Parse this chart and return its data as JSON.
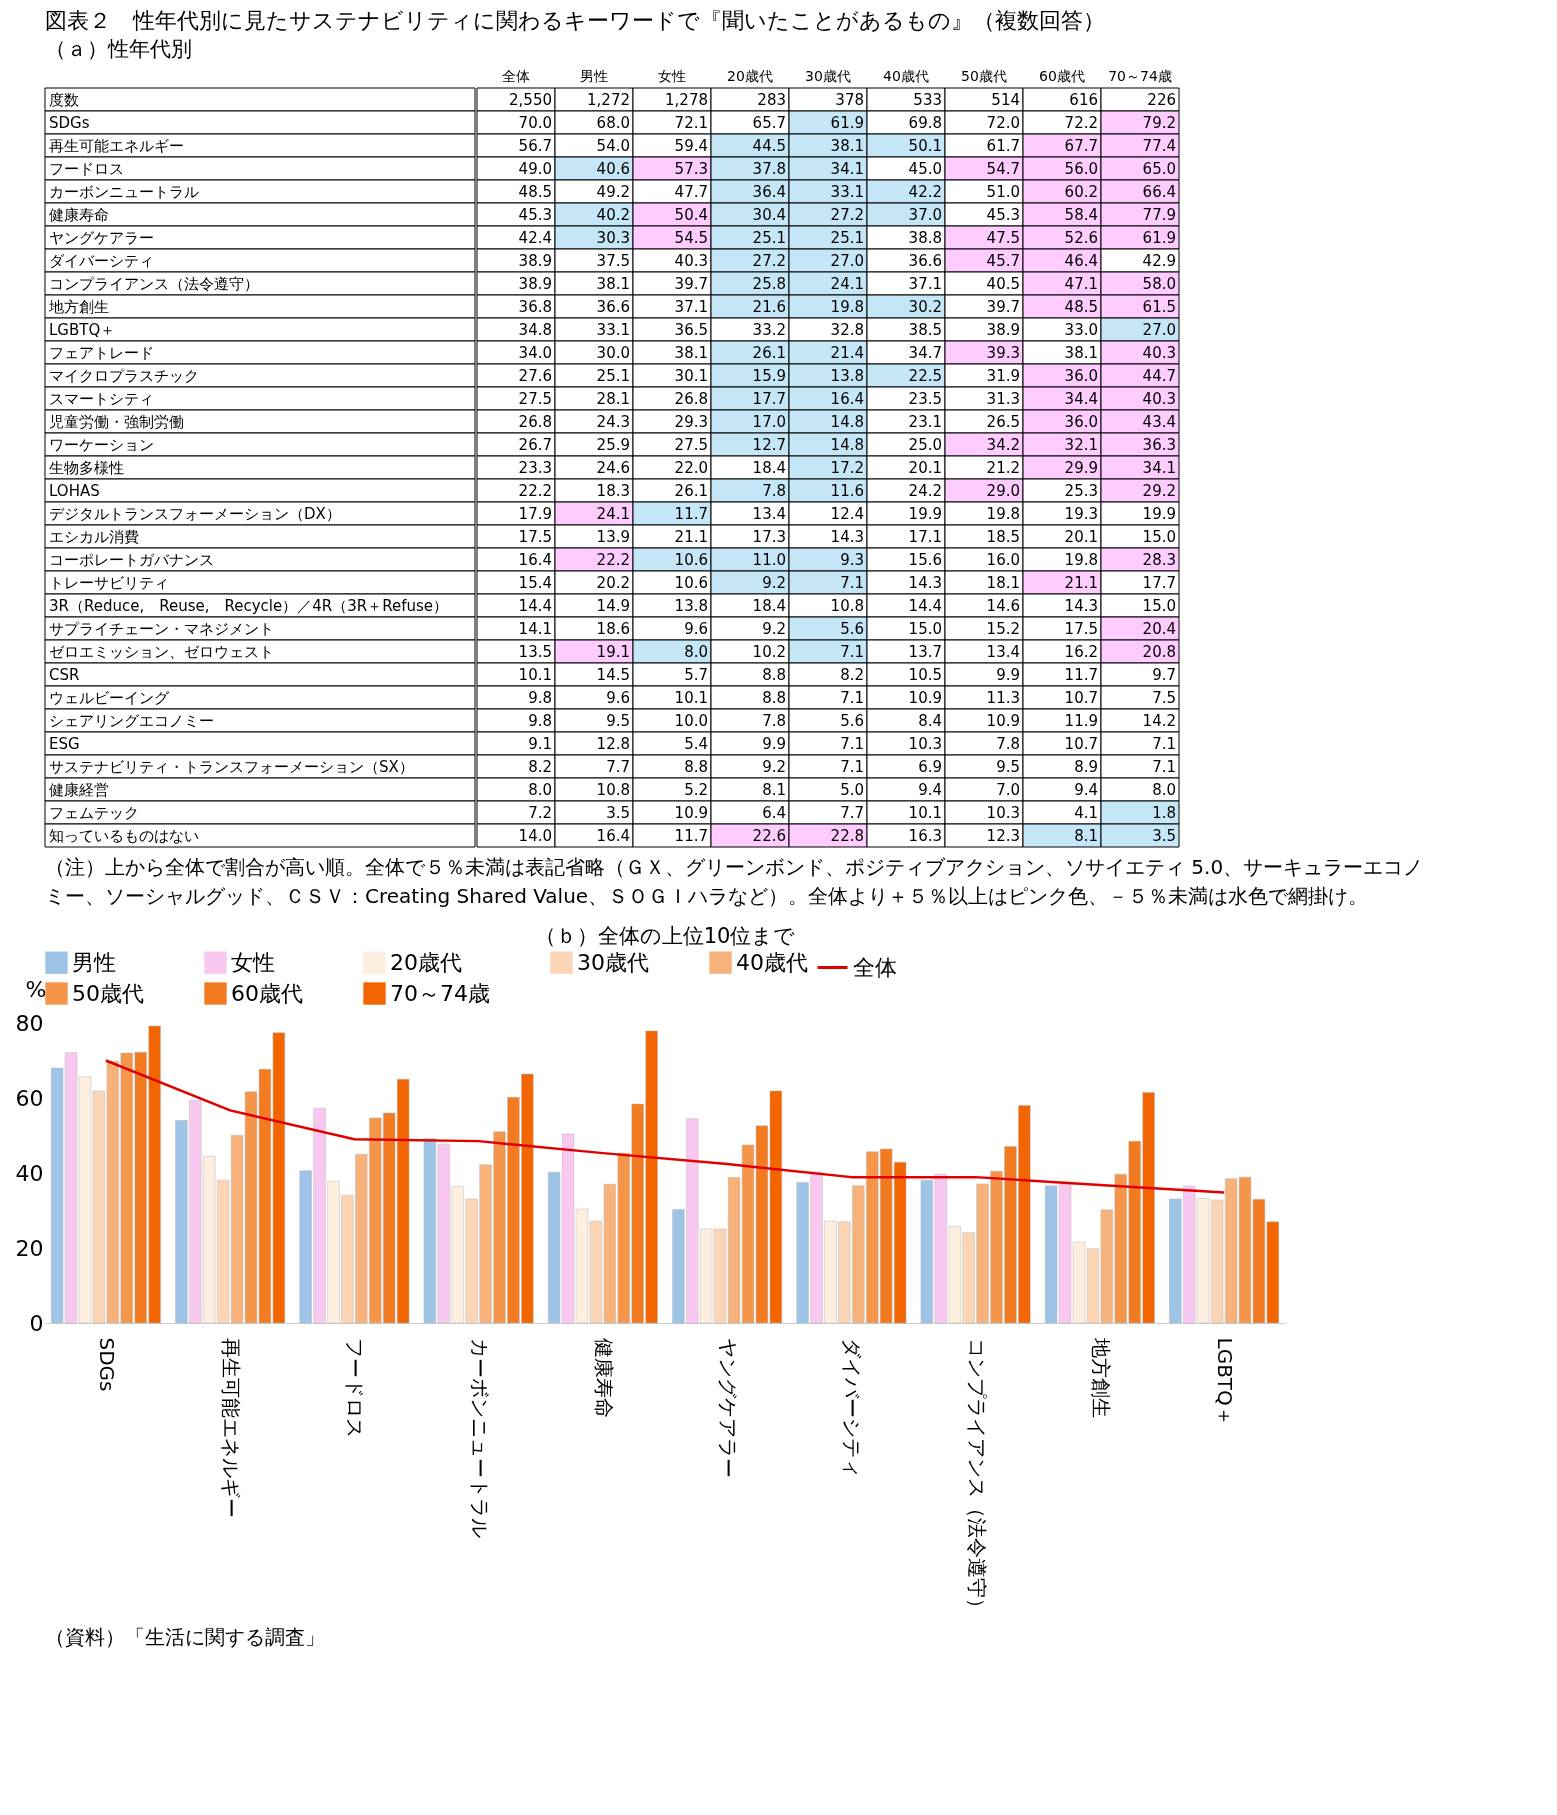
{
  "chart_data": [
    {
      "type": "heatmap",
      "title": "図表２　性年代別に見たサステナビリティに関わるキーワードで『聞いたことがあるもの』（複数回答）",
      "subtitle": "（ａ）性年代別",
      "data_labels": true,
      "categories": [
        "全体",
        "男性",
        "女性",
        "20歳代",
        "30歳代",
        "40歳代",
        "50歳代",
        "60歳代",
        "70～74歳"
      ],
      "y_categories": [
        "度数",
        "SDGs",
        "再生可能エネルギー",
        "フードロス",
        "カーボンニュートラル",
        "健康寿命",
        "ヤングケアラー",
        "ダイバーシティ",
        "コンプライアンス（法令遵守）",
        "地方創生",
        "LGBTQ＋",
        "フェアトレード",
        "マイクロプラスチック",
        "スマートシティ",
        "児童労働・強制労働",
        "ワーケーション",
        "生物多様性",
        "LOHAS",
        "デジタルトランスフォーメーション（DX）",
        "エシカル消費",
        "コーポレートガバナンス",
        "トレーサビリティ",
        "3R（Reduce,　Reuse,　Recycle）／4R（3R＋Refuse）",
        "サプライチェーン・マネジメント",
        "ゼロエミッション、ゼロウェスト",
        "CSR",
        "ウェルビーイング",
        "シェアリングエコノミー",
        "ESG",
        "サステナビリティ・トランスフォーメーション（SX）",
        "健康経営",
        "フェムテック",
        "知っているものはない"
      ],
      "cells": [
        [
          2550,
          1272,
          1278,
          283,
          378,
          533,
          514,
          616,
          226
        ],
        [
          70.0,
          68.0,
          72.1,
          65.7,
          61.9,
          69.8,
          72.0,
          72.2,
          79.2
        ],
        [
          56.7,
          54.0,
          59.4,
          44.5,
          38.1,
          50.1,
          61.7,
          67.7,
          77.4
        ],
        [
          49.0,
          40.6,
          57.3,
          37.8,
          34.1,
          45.0,
          54.7,
          56.0,
          65.0
        ],
        [
          48.5,
          49.2,
          47.7,
          36.4,
          33.1,
          42.2,
          51.0,
          60.2,
          66.4
        ],
        [
          45.3,
          40.2,
          50.4,
          30.4,
          27.2,
          37.0,
          45.3,
          58.4,
          77.9
        ],
        [
          42.4,
          30.3,
          54.5,
          25.1,
          25.1,
          38.8,
          47.5,
          52.6,
          61.9
        ],
        [
          38.9,
          37.5,
          40.3,
          27.2,
          27.0,
          36.6,
          45.7,
          46.4,
          42.9
        ],
        [
          38.9,
          38.1,
          39.7,
          25.8,
          24.1,
          37.1,
          40.5,
          47.1,
          58.0
        ],
        [
          36.8,
          36.6,
          37.1,
          21.6,
          19.8,
          30.2,
          39.7,
          48.5,
          61.5
        ],
        [
          34.8,
          33.1,
          36.5,
          33.2,
          32.8,
          38.5,
          38.9,
          33.0,
          27.0
        ],
        [
          34.0,
          30.0,
          38.1,
          26.1,
          21.4,
          34.7,
          39.3,
          38.1,
          40.3
        ],
        [
          27.6,
          25.1,
          30.1,
          15.9,
          13.8,
          22.5,
          31.9,
          36.0,
          44.7
        ],
        [
          27.5,
          28.1,
          26.8,
          17.7,
          16.4,
          23.5,
          31.3,
          34.4,
          40.3
        ],
        [
          26.8,
          24.3,
          29.3,
          17.0,
          14.8,
          23.1,
          26.5,
          36.0,
          43.4
        ],
        [
          26.7,
          25.9,
          27.5,
          12.7,
          14.8,
          25.0,
          34.2,
          32.1,
          36.3
        ],
        [
          23.3,
          24.6,
          22.0,
          18.4,
          17.2,
          20.1,
          21.2,
          29.9,
          34.1
        ],
        [
          22.2,
          18.3,
          26.1,
          7.8,
          11.6,
          24.2,
          29.0,
          25.3,
          29.2
        ],
        [
          17.9,
          24.1,
          11.7,
          13.4,
          12.4,
          19.9,
          19.8,
          19.3,
          19.9
        ],
        [
          17.5,
          13.9,
          21.1,
          17.3,
          14.3,
          17.1,
          18.5,
          20.1,
          15.0
        ],
        [
          16.4,
          22.2,
          10.6,
          11.0,
          9.3,
          15.6,
          16.0,
          19.8,
          28.3
        ],
        [
          15.4,
          20.2,
          10.6,
          9.2,
          7.1,
          14.3,
          18.1,
          21.1,
          17.7
        ],
        [
          14.4,
          14.9,
          13.8,
          18.4,
          10.8,
          14.4,
          14.6,
          14.3,
          15.0
        ],
        [
          14.1,
          18.6,
          9.6,
          9.2,
          5.6,
          15.0,
          15.2,
          17.5,
          20.4
        ],
        [
          13.5,
          19.1,
          8.0,
          10.2,
          7.1,
          13.7,
          13.4,
          16.2,
          20.8
        ],
        [
          10.1,
          14.5,
          5.7,
          8.8,
          8.2,
          10.5,
          9.9,
          11.7,
          9.7
        ],
        [
          9.8,
          9.6,
          10.1,
          8.8,
          7.1,
          10.9,
          11.3,
          10.7,
          7.5
        ],
        [
          9.8,
          9.5,
          10.0,
          7.8,
          5.6,
          8.4,
          10.9,
          11.9,
          14.2
        ],
        [
          9.1,
          12.8,
          5.4,
          9.9,
          7.1,
          10.3,
          7.8,
          10.7,
          7.1
        ],
        [
          8.2,
          7.7,
          8.8,
          9.2,
          7.1,
          6.9,
          9.5,
          8.9,
          7.1
        ],
        [
          8.0,
          10.8,
          5.2,
          8.1,
          5.0,
          9.4,
          7.0,
          9.4,
          8.0
        ],
        [
          7.2,
          3.5,
          10.9,
          6.4,
          7.7,
          10.1,
          10.3,
          4.1,
          1.8
        ],
        [
          14.0,
          16.4,
          11.7,
          22.6,
          22.8,
          16.3,
          12.3,
          8.1,
          3.5
        ]
      ],
      "cell_labels": [
        [
          "2,550",
          "1,272",
          "1,278",
          "283",
          "378",
          "533",
          "514",
          "616",
          "226"
        ],
        [
          "70.0",
          "68.0",
          "72.1",
          "65.7",
          "61.9",
          "69.8",
          "72.0",
          "72.2",
          "79.2"
        ],
        [
          "56.7",
          "54.0",
          "59.4",
          "44.5",
          "38.1",
          "50.1",
          "61.7",
          "67.7",
          "77.4"
        ],
        [
          "49.0",
          "40.6",
          "57.3",
          "37.8",
          "34.1",
          "45.0",
          "54.7",
          "56.0",
          "65.0"
        ],
        [
          "48.5",
          "49.2",
          "47.7",
          "36.4",
          "33.1",
          "42.2",
          "51.0",
          "60.2",
          "66.4"
        ],
        [
          "45.3",
          "40.2",
          "50.4",
          "30.4",
          "27.2",
          "37.0",
          "45.3",
          "58.4",
          "77.9"
        ],
        [
          "42.4",
          "30.3",
          "54.5",
          "25.1",
          "25.1",
          "38.8",
          "47.5",
          "52.6",
          "61.9"
        ],
        [
          "38.9",
          "37.5",
          "40.3",
          "27.2",
          "27.0",
          "36.6",
          "45.7",
          "46.4",
          "42.9"
        ],
        [
          "38.9",
          "38.1",
          "39.7",
          "25.8",
          "24.1",
          "37.1",
          "40.5",
          "47.1",
          "58.0"
        ],
        [
          "36.8",
          "36.6",
          "37.1",
          "21.6",
          "19.8",
          "30.2",
          "39.7",
          "48.5",
          "61.5"
        ],
        [
          "34.8",
          "33.1",
          "36.5",
          "33.2",
          "32.8",
          "38.5",
          "38.9",
          "33.0",
          "27.0"
        ],
        [
          "34.0",
          "30.0",
          "38.1",
          "26.1",
          "21.4",
          "34.7",
          "39.3",
          "38.1",
          "40.3"
        ],
        [
          "27.6",
          "25.1",
          "30.1",
          "15.9",
          "13.8",
          "22.5",
          "31.9",
          "36.0",
          "44.7"
        ],
        [
          "27.5",
          "28.1",
          "26.8",
          "17.7",
          "16.4",
          "23.5",
          "31.3",
          "34.4",
          "40.3"
        ],
        [
          "26.8",
          "24.3",
          "29.3",
          "17.0",
          "14.8",
          "23.1",
          "26.5",
          "36.0",
          "43.4"
        ],
        [
          "26.7",
          "25.9",
          "27.5",
          "12.7",
          "14.8",
          "25.0",
          "34.2",
          "32.1",
          "36.3"
        ],
        [
          "23.3",
          "24.6",
          "22.0",
          "18.4",
          "17.2",
          "20.1",
          "21.2",
          "29.9",
          "34.1"
        ],
        [
          "22.2",
          "18.3",
          "26.1",
          "7.8",
          "11.6",
          "24.2",
          "29.0",
          "25.3",
          "29.2"
        ],
        [
          "17.9",
          "24.1",
          "11.7",
          "13.4",
          "12.4",
          "19.9",
          "19.8",
          "19.3",
          "19.9"
        ],
        [
          "17.5",
          "13.9",
          "21.1",
          "17.3",
          "14.3",
          "17.1",
          "18.5",
          "20.1",
          "15.0"
        ],
        [
          "16.4",
          "22.2",
          "10.6",
          "11.0",
          "9.3",
          "15.6",
          "16.0",
          "19.8",
          "28.3"
        ],
        [
          "15.4",
          "20.2",
          "10.6",
          "9.2",
          "7.1",
          "14.3",
          "18.1",
          "21.1",
          "17.7"
        ],
        [
          "14.4",
          "14.9",
          "13.8",
          "18.4",
          "10.8",
          "14.4",
          "14.6",
          "14.3",
          "15.0"
        ],
        [
          "14.1",
          "18.6",
          "9.6",
          "9.2",
          "5.6",
          "15.0",
          "15.2",
          "17.5",
          "20.4"
        ],
        [
          "13.5",
          "19.1",
          "8.0",
          "10.2",
          "7.1",
          "13.7",
          "13.4",
          "16.2",
          "20.8"
        ],
        [
          "10.1",
          "14.5",
          "5.7",
          "8.8",
          "8.2",
          "10.5",
          "9.9",
          "11.7",
          "9.7"
        ],
        [
          "9.8",
          "9.6",
          "10.1",
          "8.8",
          "7.1",
          "10.9",
          "11.3",
          "10.7",
          "7.5"
        ],
        [
          "9.8",
          "9.5",
          "10.0",
          "7.8",
          "5.6",
          "8.4",
          "10.9",
          "11.9",
          "14.2"
        ],
        [
          "9.1",
          "12.8",
          "5.4",
          "9.9",
          "7.1",
          "10.3",
          "7.8",
          "10.7",
          "7.1"
        ],
        [
          "8.2",
          "7.7",
          "8.8",
          "9.2",
          "7.1",
          "6.9",
          "9.5",
          "8.9",
          "7.1"
        ],
        [
          "8.0",
          "10.8",
          "5.2",
          "8.1",
          "5.0",
          "9.4",
          "7.0",
          "9.4",
          "8.0"
        ],
        [
          "7.2",
          "3.5",
          "10.9",
          "6.4",
          "7.7",
          "10.1",
          "10.3",
          "4.1",
          "1.8"
        ],
        [
          "14.0",
          "16.4",
          "11.7",
          "22.6",
          "22.8",
          "16.3",
          "12.3",
          "8.1",
          "3.5"
        ]
      ],
      "colors": [
        null,
        [
          null,
          null,
          null,
          null,
          "#c5e6f7",
          null,
          null,
          null,
          "#ffccff"
        ],
        [
          null,
          null,
          null,
          "#c5e6f7",
          "#c5e6f7",
          "#c5e6f7",
          null,
          "#ffccff",
          "#ffccff"
        ],
        [
          null,
          "#c5e6f7",
          "#ffccff",
          "#c5e6f7",
          "#c5e6f7",
          null,
          "#ffccff",
          "#ffccff",
          "#ffccff"
        ],
        [
          null,
          null,
          null,
          "#c5e6f7",
          "#c5e6f7",
          "#c5e6f7",
          null,
          "#ffccff",
          "#ffccff"
        ],
        [
          null,
          "#c5e6f7",
          "#ffccff",
          "#c5e6f7",
          "#c5e6f7",
          "#c5e6f7",
          null,
          "#ffccff",
          "#ffccff"
        ],
        [
          null,
          "#c5e6f7",
          "#ffccff",
          "#c5e6f7",
          "#c5e6f7",
          null,
          "#ffccff",
          "#ffccff",
          "#ffccff"
        ],
        [
          null,
          null,
          null,
          "#c5e6f7",
          "#c5e6f7",
          null,
          "#ffccff",
          "#ffccff",
          null
        ],
        [
          null,
          null,
          null,
          "#c5e6f7",
          "#c5e6f7",
          null,
          null,
          "#ffccff",
          "#ffccff"
        ],
        [
          null,
          null,
          null,
          "#c5e6f7",
          "#c5e6f7",
          "#c5e6f7",
          null,
          "#ffccff",
          "#ffccff"
        ],
        [
          null,
          null,
          null,
          null,
          null,
          null,
          null,
          null,
          "#c5e6f7"
        ],
        [
          null,
          null,
          null,
          "#c5e6f7",
          "#c5e6f7",
          null,
          "#ffccff",
          null,
          "#ffccff"
        ],
        [
          null,
          null,
          null,
          "#c5e6f7",
          "#c5e6f7",
          "#c5e6f7",
          null,
          "#ffccff",
          "#ffccff"
        ],
        [
          null,
          null,
          null,
          "#c5e6f7",
          "#c5e6f7",
          null,
          null,
          "#ffccff",
          "#ffccff"
        ],
        [
          null,
          null,
          null,
          "#c5e6f7",
          "#c5e6f7",
          null,
          null,
          "#ffccff",
          "#ffccff"
        ],
        [
          null,
          null,
          null,
          "#c5e6f7",
          "#c5e6f7",
          null,
          "#ffccff",
          "#ffccff",
          "#ffccff"
        ],
        [
          null,
          null,
          null,
          null,
          "#c5e6f7",
          null,
          null,
          "#ffccff",
          "#ffccff"
        ],
        [
          null,
          null,
          null,
          "#c5e6f7",
          "#c5e6f7",
          null,
          "#ffccff",
          null,
          "#ffccff"
        ],
        [
          null,
          "#ffccff",
          "#c5e6f7",
          null,
          null,
          null,
          null,
          null,
          null
        ],
        null,
        [
          null,
          "#ffccff",
          "#c5e6f7",
          "#c5e6f7",
          "#c5e6f7",
          null,
          null,
          null,
          "#ffccff"
        ],
        [
          null,
          null,
          null,
          "#c5e6f7",
          "#c5e6f7",
          null,
          null,
          "#ffccff",
          null
        ],
        null,
        [
          null,
          null,
          null,
          null,
          "#c5e6f7",
          null,
          null,
          null,
          "#ffccff"
        ],
        [
          null,
          "#ffccff",
          "#c5e6f7",
          null,
          "#c5e6f7",
          null,
          null,
          null,
          "#ffccff"
        ],
        null,
        null,
        null,
        null,
        null,
        null,
        [
          null,
          null,
          null,
          null,
          null,
          null,
          null,
          null,
          "#c5e6f7"
        ],
        [
          null,
          null,
          null,
          "#ffccff",
          "#ffccff",
          null,
          null,
          "#c5e6f7",
          "#c5e6f7"
        ]
      ],
      "annotations": [
        "（注）上から全体で割合が高い順。全体で５％未満は表記省略（ＧＸ、グリーンボンド、ポジティブアクション、ソサイエティ 5.0、サーキュラーエコノミー、ソーシャルグッド、ＣＳＶ：Creating Shared Value、ＳＯＧＩハラなど）。全体より＋５％以上はピンク色、－５％未満は水色で網掛け。"
      ]
    },
    {
      "type": "bar",
      "title": "（ｂ）全体の上位10位まで",
      "ylabel": "%",
      "ylim": [
        0,
        80
      ],
      "yticks": [
        0,
        20,
        40,
        60,
        80
      ],
      "grid": false,
      "legend": "top",
      "categories": [
        "SDGs",
        "再生可能エネルギー",
        "フードロス",
        "カーボンニュートラル",
        "健康寿命",
        "ヤングケアラー",
        "ダイバーシティ",
        "コンプライアンス（法令遵守）",
        "地方創生",
        "LGBTQ＋"
      ],
      "series": [
        {
          "name": "男性",
          "color": "#9dc3e6",
          "values": [
            68.0,
            54.0,
            40.6,
            49.2,
            40.2,
            30.3,
            37.5,
            38.1,
            36.6,
            33.1
          ]
        },
        {
          "name": "女性",
          "color": "#f8c8f0",
          "values": [
            72.1,
            59.4,
            57.3,
            47.7,
            50.4,
            54.5,
            40.3,
            39.7,
            37.1,
            36.5
          ]
        },
        {
          "name": "20歳代",
          "color": "#fdeee0",
          "values": [
            65.7,
            44.5,
            37.8,
            36.4,
            30.4,
            25.1,
            27.2,
            25.8,
            21.6,
            33.2
          ]
        },
        {
          "name": "30歳代",
          "color": "#fbd5b5",
          "values": [
            61.9,
            38.1,
            34.1,
            33.1,
            27.2,
            25.1,
            27.0,
            24.1,
            19.8,
            32.8
          ]
        },
        {
          "name": "40歳代",
          "color": "#f7b27c",
          "values": [
            69.8,
            50.1,
            45.0,
            42.2,
            37.0,
            38.8,
            36.6,
            37.1,
            30.2,
            38.5
          ]
        },
        {
          "name": "50歳代",
          "color": "#f4954a",
          "values": [
            72.0,
            61.7,
            54.7,
            51.0,
            45.3,
            47.5,
            45.7,
            40.5,
            39.7,
            38.9
          ]
        },
        {
          "name": "60歳代",
          "color": "#f27a20",
          "values": [
            72.2,
            67.7,
            56.0,
            60.2,
            58.4,
            52.6,
            46.4,
            47.1,
            48.5,
            33.0
          ]
        },
        {
          "name": "70～74歳",
          "color": "#f26500",
          "values": [
            79.2,
            77.4,
            65.0,
            66.4,
            77.9,
            61.9,
            42.9,
            58.0,
            61.5,
            27.0
          ]
        },
        {
          "name": "全体",
          "type": "line",
          "color": "#e00000",
          "values": [
            70.0,
            56.7,
            49.0,
            48.5,
            45.3,
            42.4,
            38.9,
            38.9,
            36.8,
            34.8
          ]
        }
      ],
      "annotations": [
        "（資料）「生活に関する調査」"
      ]
    }
  ]
}
